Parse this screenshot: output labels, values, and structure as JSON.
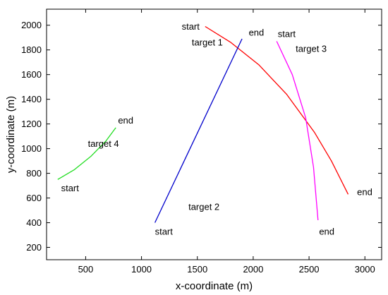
{
  "chart_data": {
    "type": "line",
    "title": "",
    "xlabel": "x-coordinate (m)",
    "ylabel": "y-coordinate (m)",
    "xlim": [
      150,
      3150
    ],
    "ylim": [
      100,
      2130
    ],
    "xticks": [
      500,
      1000,
      1500,
      2000,
      2500,
      3000
    ],
    "yticks": [
      200,
      400,
      600,
      800,
      1000,
      1200,
      1400,
      1600,
      1800,
      2000
    ],
    "grid": false,
    "legend": "none",
    "series": [
      {
        "name": "target 1",
        "color": "#ff0000",
        "x": [
          1570,
          1800,
          2050,
          2300,
          2550,
          2700,
          2850
        ],
        "y": [
          1990,
          1860,
          1680,
          1440,
          1130,
          900,
          630
        ]
      },
      {
        "name": "target 2",
        "color": "#0000cc",
        "x": [
          1120,
          1900
        ],
        "y": [
          400,
          1890
        ]
      },
      {
        "name": "target 3",
        "color": "#ff00ff",
        "x": [
          2210,
          2350,
          2470,
          2540,
          2580
        ],
        "y": [
          1870,
          1600,
          1250,
          850,
          420
        ]
      },
      {
        "name": "target 4",
        "color": "#22dd22",
        "x": [
          250,
          400,
          550,
          680,
          770
        ],
        "y": [
          750,
          830,
          940,
          1060,
          1170
        ]
      }
    ],
    "annotations": [
      {
        "text": "start",
        "x": 1360,
        "y": 1990
      },
      {
        "text": "target 1",
        "x": 1450,
        "y": 1860
      },
      {
        "text": "end",
        "x": 1960,
        "y": 1940
      },
      {
        "text": "start",
        "x": 2220,
        "y": 1930
      },
      {
        "text": "target 3",
        "x": 2380,
        "y": 1810
      },
      {
        "text": "end",
        "x": 2930,
        "y": 650
      },
      {
        "text": "end",
        "x": 2590,
        "y": 330
      },
      {
        "text": "target 2",
        "x": 1420,
        "y": 530
      },
      {
        "text": "start",
        "x": 1120,
        "y": 330
      },
      {
        "text": "end",
        "x": 790,
        "y": 1230
      },
      {
        "text": "target 4",
        "x": 520,
        "y": 1040
      },
      {
        "text": "start",
        "x": 280,
        "y": 680
      }
    ]
  }
}
